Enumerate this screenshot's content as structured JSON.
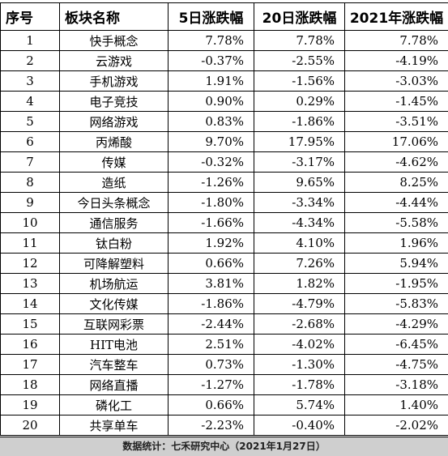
{
  "table": {
    "headers": [
      "序号",
      "板块名称",
      "5日涨跌幅",
      "20日涨跌幅",
      "2021年涨跌幅"
    ],
    "rows": [
      {
        "idx": "1",
        "name": "快手概念",
        "d5": "7.78%",
        "d20": "7.78%",
        "y2021": "7.78%"
      },
      {
        "idx": "2",
        "name": "云游戏",
        "d5": "-0.37%",
        "d20": "-2.55%",
        "y2021": "-4.19%"
      },
      {
        "idx": "3",
        "name": "手机游戏",
        "d5": "1.91%",
        "d20": "-1.56%",
        "y2021": "-3.03%"
      },
      {
        "idx": "4",
        "name": "电子竞技",
        "d5": "0.90%",
        "d20": "0.29%",
        "y2021": "-1.45%"
      },
      {
        "idx": "5",
        "name": "网络游戏",
        "d5": "0.83%",
        "d20": "-1.86%",
        "y2021": "-3.51%"
      },
      {
        "idx": "6",
        "name": "丙烯酸",
        "d5": "9.70%",
        "d20": "17.95%",
        "y2021": "17.06%"
      },
      {
        "idx": "7",
        "name": "传媒",
        "d5": "-0.32%",
        "d20": "-3.17%",
        "y2021": "-4.62%"
      },
      {
        "idx": "8",
        "name": "造纸",
        "d5": "-1.26%",
        "d20": "9.65%",
        "y2021": "8.25%"
      },
      {
        "idx": "9",
        "name": "今日头条概念",
        "d5": "-1.80%",
        "d20": "-3.34%",
        "y2021": "-4.44%"
      },
      {
        "idx": "10",
        "name": "通信服务",
        "d5": "-1.66%",
        "d20": "-4.34%",
        "y2021": "-5.58%"
      },
      {
        "idx": "11",
        "name": "钛白粉",
        "d5": "1.92%",
        "d20": "4.10%",
        "y2021": "1.96%"
      },
      {
        "idx": "12",
        "name": "可降解塑料",
        "d5": "0.66%",
        "d20": "7.26%",
        "y2021": "5.94%"
      },
      {
        "idx": "13",
        "name": "机场航运",
        "d5": "3.81%",
        "d20": "1.82%",
        "y2021": "-1.95%"
      },
      {
        "idx": "14",
        "name": "文化传媒",
        "d5": "-1.86%",
        "d20": "-4.79%",
        "y2021": "-5.83%"
      },
      {
        "idx": "15",
        "name": "互联网彩票",
        "d5": "-2.44%",
        "d20": "-2.68%",
        "y2021": "-4.29%"
      },
      {
        "idx": "16",
        "name": "HIT电池",
        "d5": "2.51%",
        "d20": "-4.02%",
        "y2021": "-6.45%"
      },
      {
        "idx": "17",
        "name": "汽车整车",
        "d5": "0.73%",
        "d20": "-1.30%",
        "y2021": "-4.75%"
      },
      {
        "idx": "18",
        "name": "网络直播",
        "d5": "-1.27%",
        "d20": "-1.78%",
        "y2021": "-3.18%"
      },
      {
        "idx": "19",
        "name": "磷化工",
        "d5": "0.66%",
        "d20": "5.74%",
        "y2021": "1.40%"
      },
      {
        "idx": "20",
        "name": "共享单车",
        "d5": "-2.23%",
        "d20": "-0.40%",
        "y2021": "-2.02%"
      }
    ]
  },
  "footer": {
    "text": "数据统计：七禾研究中心（2021年1月27日）"
  }
}
